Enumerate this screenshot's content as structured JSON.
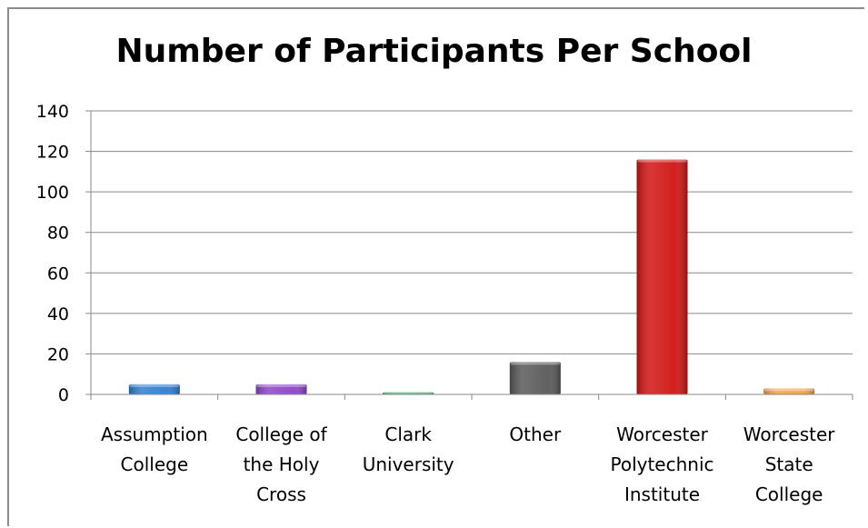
{
  "chart_data": {
    "type": "bar",
    "title": "Number of Participants Per School",
    "categories": [
      [
        "Assumption",
        "College"
      ],
      [
        "College of",
        "the Holy",
        "Cross"
      ],
      [
        "Clark",
        "University"
      ],
      [
        "Other"
      ],
      [
        "Worcester",
        "Polytechnic",
        "Institute"
      ],
      [
        "Worcester",
        "State",
        "College"
      ]
    ],
    "values": [
      5,
      5,
      1,
      16,
      116,
      3
    ],
    "colors": [
      "#2e7dd1",
      "#8c45c6",
      "#1b9a55",
      "#595959",
      "#d11414",
      "#f0a14a"
    ],
    "ylim": [
      0,
      140
    ],
    "yticks": [
      0,
      20,
      40,
      60,
      80,
      100,
      120,
      140
    ],
    "grid": true,
    "legend": "none"
  }
}
